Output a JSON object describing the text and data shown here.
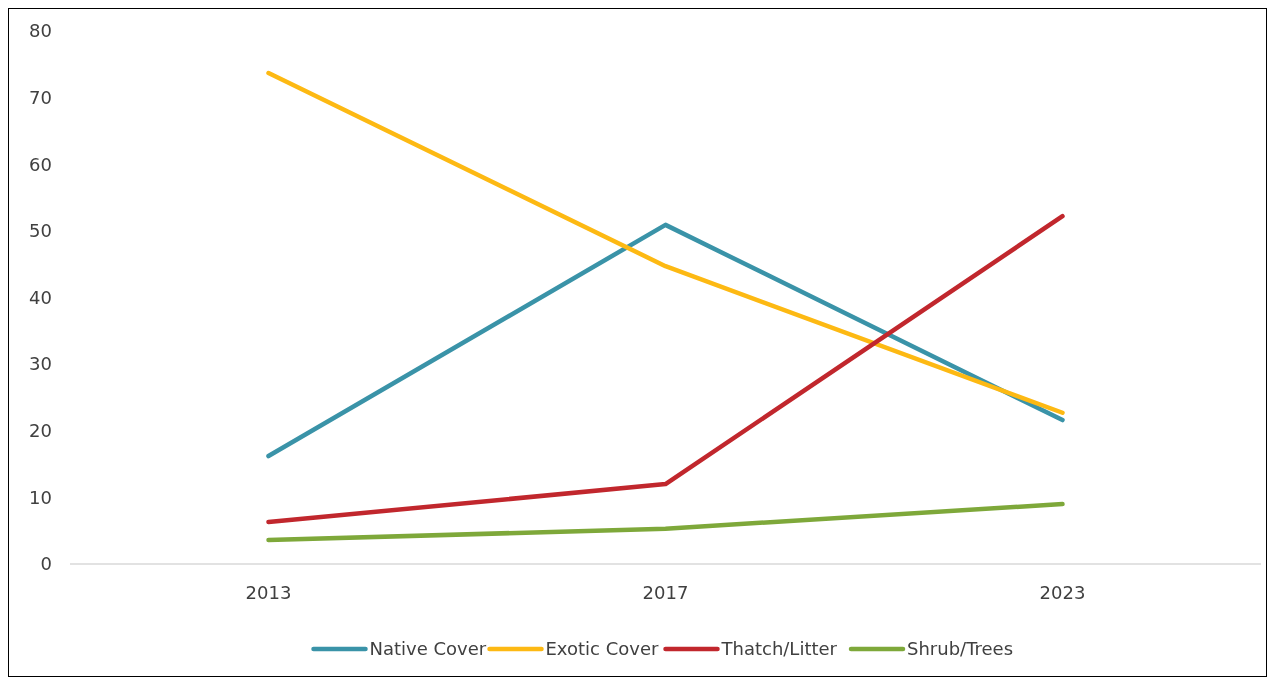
{
  "chart_data": {
    "type": "line",
    "categories": [
      "2013",
      "2017",
      "2023"
    ],
    "series": [
      {
        "name": "Native Cover",
        "color": "#3a93a8",
        "values": [
          16.2,
          50.9,
          21.6
        ]
      },
      {
        "name": "Exotic Cover",
        "color": "#fdb913",
        "values": [
          73.7,
          44.7,
          22.7
        ]
      },
      {
        "name": "Thatch/Litter",
        "color": "#c1272d",
        "values": [
          6.3,
          12.0,
          52.2
        ]
      },
      {
        "name": "Shrub/Trees",
        "color": "#7ea83a",
        "values": [
          3.6,
          5.3,
          9.0
        ]
      }
    ],
    "ylim": [
      0,
      80
    ],
    "yticks": [
      0,
      10,
      20,
      30,
      40,
      50,
      60,
      70,
      80
    ],
    "grid": false,
    "legend": "bottom",
    "marker": "none",
    "line_style": "solid"
  }
}
